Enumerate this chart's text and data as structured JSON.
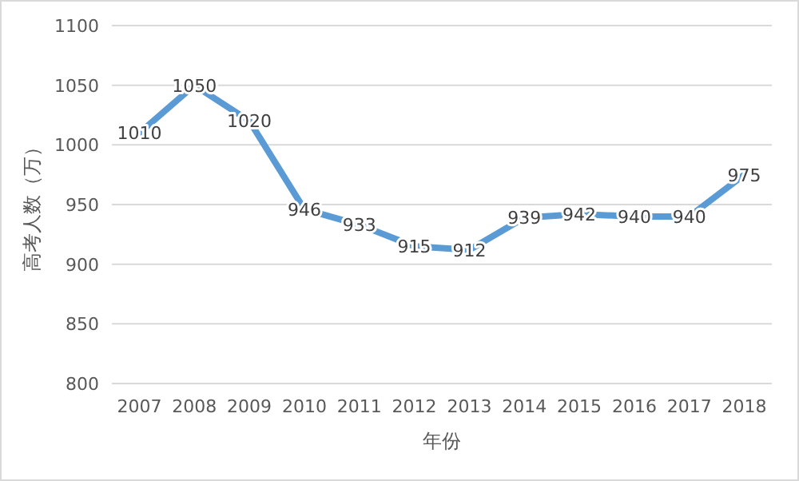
{
  "chart_data": {
    "type": "line",
    "xlabel": "年份",
    "ylabel": "高考人数（万）",
    "categories": [
      "2007",
      "2008",
      "2009",
      "2010",
      "2011",
      "2012",
      "2013",
      "2014",
      "2015",
      "2016",
      "2017",
      "2018"
    ],
    "values": [
      1010,
      1050,
      1020,
      946,
      933,
      915,
      912,
      939,
      942,
      940,
      940,
      975
    ],
    "color": "#5b9bd5",
    "ylim": [
      800,
      1100
    ],
    "yticks": [
      800,
      850,
      900,
      950,
      1000,
      1050,
      1100
    ],
    "grid": "y",
    "data_labels": true,
    "marker": "none",
    "line_style": "solid"
  }
}
